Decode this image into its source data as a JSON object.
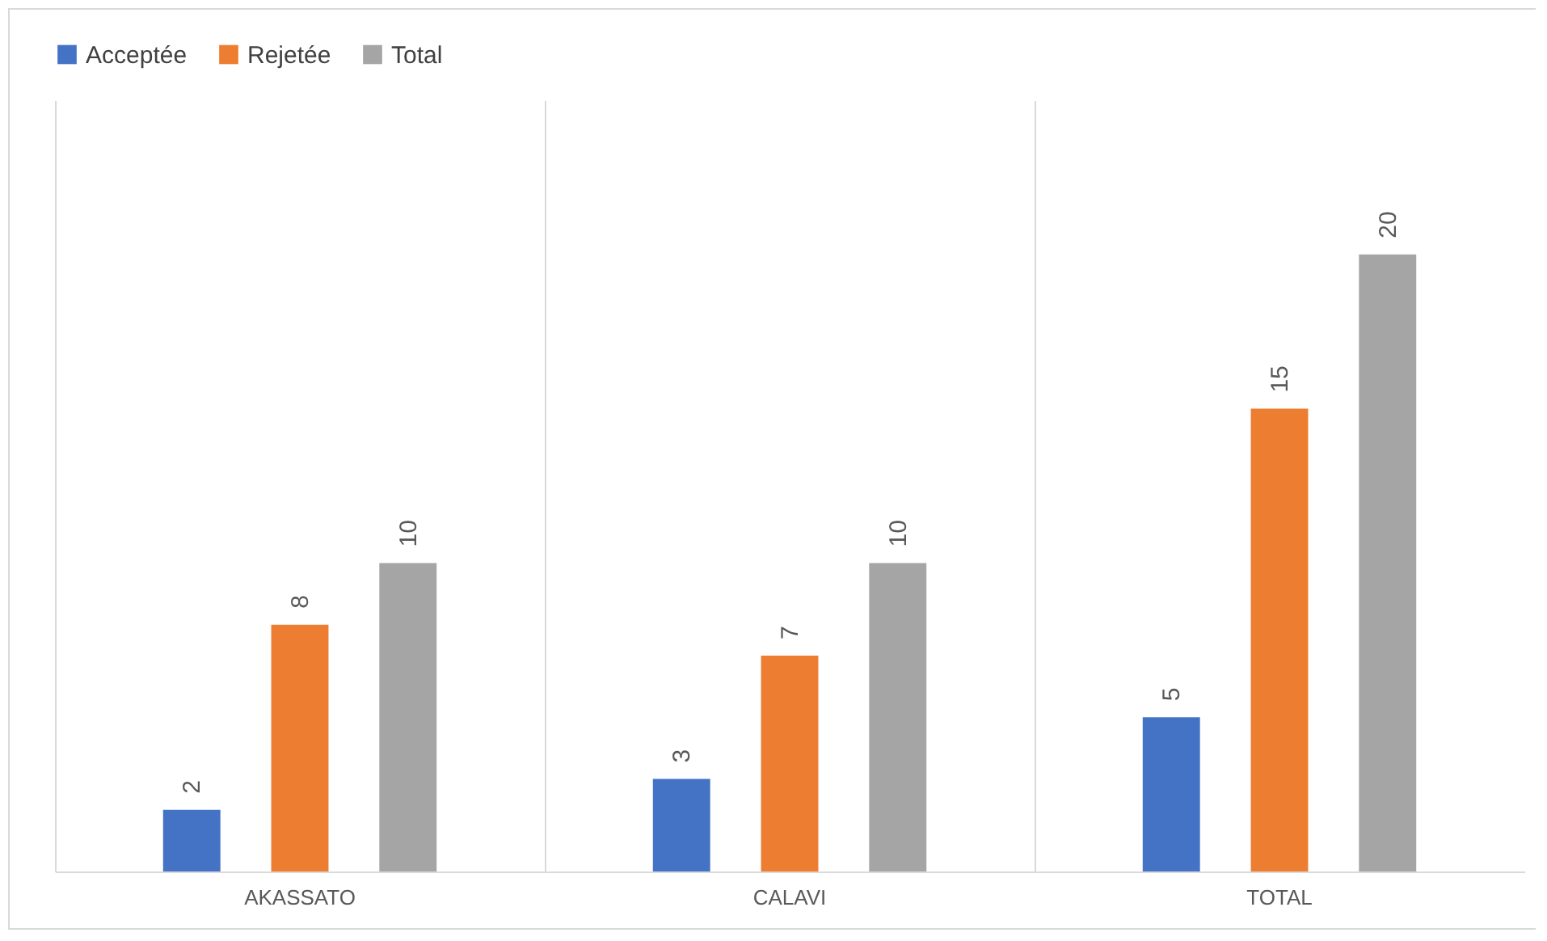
{
  "chart_data": {
    "type": "bar",
    "categories": [
      "AKASSATO",
      "CALAVI",
      "TOTAL"
    ],
    "series": [
      {
        "name": "Acceptée",
        "color": "#4472c4",
        "values": [
          2,
          3,
          5
        ]
      },
      {
        "name": "Rejetée",
        "color": "#ed7d31",
        "values": [
          8,
          7,
          15
        ]
      },
      {
        "name": "Total",
        "color": "#a5a5a5",
        "values": [
          10,
          10,
          20
        ]
      }
    ],
    "ylim": [
      0,
      25
    ],
    "tick_labels": "x",
    "grid": "x",
    "legend": "top",
    "data_labels": true
  }
}
